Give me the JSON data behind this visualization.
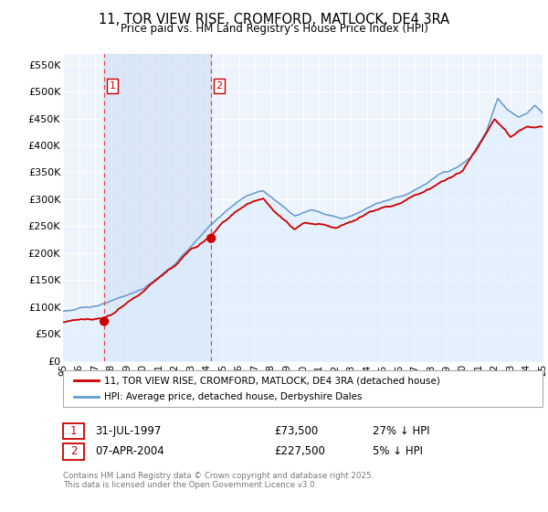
{
  "title_line1": "11, TOR VIEW RISE, CROMFORD, MATLOCK, DE4 3RA",
  "title_line2": "Price paid vs. HM Land Registry's House Price Index (HPI)",
  "yticks": [
    0,
    50000,
    100000,
    150000,
    200000,
    250000,
    300000,
    350000,
    400000,
    450000,
    500000,
    550000
  ],
  "ytick_labels": [
    "£0",
    "£50K",
    "£100K",
    "£150K",
    "£200K",
    "£250K",
    "£300K",
    "£350K",
    "£400K",
    "£450K",
    "£500K",
    "£550K"
  ],
  "xmin_year": 1995,
  "xmax_year": 2025,
  "xtick_years": [
    1995,
    1996,
    1997,
    1998,
    1999,
    2000,
    2001,
    2002,
    2003,
    2004,
    2005,
    2006,
    2007,
    2008,
    2009,
    2010,
    2011,
    2012,
    2013,
    2014,
    2015,
    2016,
    2017,
    2018,
    2019,
    2020,
    2021,
    2022,
    2023,
    2024,
    2025
  ],
  "xtick_labels": [
    "95",
    "96",
    "97",
    "98",
    "99",
    "00",
    "01",
    "02",
    "03",
    "04",
    "05",
    "06",
    "07",
    "08",
    "09",
    "10",
    "11",
    "12",
    "13",
    "14",
    "15",
    "16",
    "17",
    "18",
    "19",
    "20",
    "21",
    "22",
    "23",
    "24",
    "25"
  ],
  "sale1_year": 1997.577,
  "sale1_price": 73500,
  "sale1_label": "1",
  "sale1_date": "31-JUL-1997",
  "sale1_price_str": "£73,500",
  "sale1_hpi_rel": "27% ↓ HPI",
  "sale2_year": 2004.27,
  "sale2_price": 227500,
  "sale2_label": "2",
  "sale2_date": "07-APR-2004",
  "sale2_price_str": "£227,500",
  "sale2_hpi_rel": "5% ↓ HPI",
  "legend_property": "11, TOR VIEW RISE, CROMFORD, MATLOCK, DE4 3RA (detached house)",
  "legend_hpi": "HPI: Average price, detached house, Derbyshire Dales",
  "property_color": "#cc0000",
  "hpi_color": "#6699cc",
  "hpi_fill_color": "#ddeeff",
  "vline_color": "#ee4444",
  "box_color": "#cc0000",
  "chart_bg": "#eef4fb",
  "footnote_line1": "Contains HM Land Registry data © Crown copyright and database right 2025.",
  "footnote_line2": "This data is licensed under the Open Government Licence v3.0."
}
